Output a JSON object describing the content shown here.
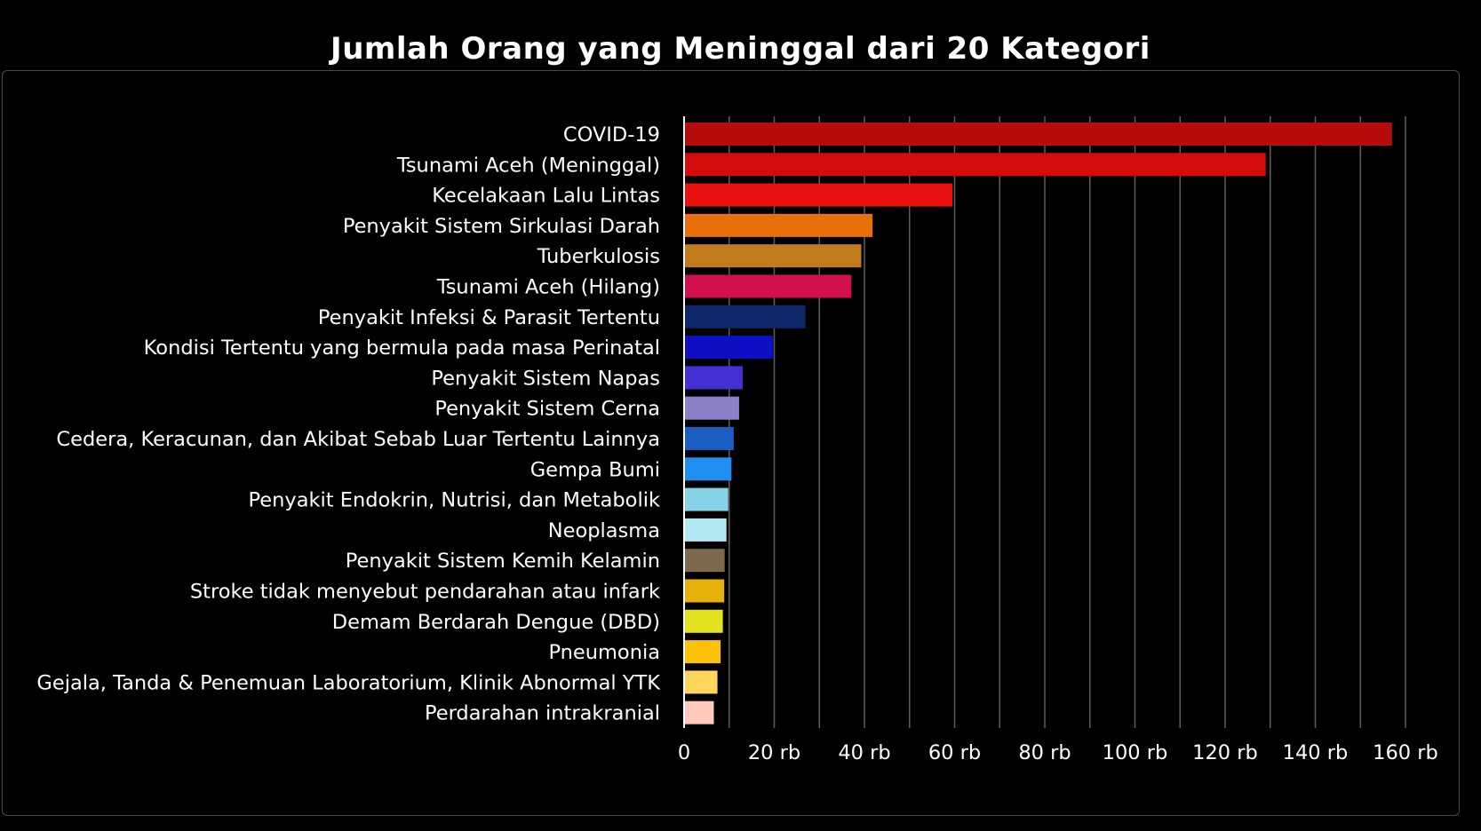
{
  "chart_data": {
    "type": "bar",
    "orientation": "horizontal",
    "title": "Jumlah Orang yang Meninggal dari 20 Kategori",
    "xlabel": "",
    "ylabel": "",
    "xlim": [
      0,
      160000
    ],
    "grid": true,
    "legend": "none",
    "tick_values": [
      0,
      20000,
      40000,
      60000,
      80000,
      100000,
      120000,
      140000,
      160000
    ],
    "tick_labels": [
      "0",
      "20 rb",
      "40 rb",
      "60 rb",
      "80 rb",
      "100 rb",
      "120 rb",
      "140 rb",
      "160 rb"
    ],
    "categories": [
      "COVID-19",
      "Tsunami Aceh (Meninggal)",
      "Kecelakaan Lalu Lintas",
      "Penyakit Sistem Sirkulasi Darah",
      "Tuberkulosis",
      "Tsunami Aceh (Hilang)",
      "Penyakit Infeksi & Parasit Tertentu",
      "Kondisi Tertentu yang bermula pada masa Perinatal",
      "Penyakit Sistem Napas",
      "Penyakit Sistem Cerna",
      "Cedera, Keracunan, dan Akibat Sebab Luar Tertentu Lainnya",
      "Gempa Bumi",
      "Penyakit Endokrin, Nutrisi, dan Metabolik",
      "Neoplasma",
      "Penyakit Sistem Kemih Kelamin",
      "Stroke tidak menyebut pendarahan atau infark",
      "Demam Berdarah Dengue (DBD)",
      "Pneumonia",
      "Gejala, Tanda & Penemuan Laboratorium, Klinik Abnormal YTK",
      "Perdarahan intrakranial"
    ],
    "values": [
      157000,
      129000,
      59500,
      41800,
      39300,
      37100,
      26900,
      19700,
      13000,
      12200,
      11000,
      10500,
      9800,
      9400,
      9000,
      8900,
      8600,
      8100,
      7400,
      6600
    ],
    "colors": [
      "#b80c0c",
      "#d40b0b",
      "#ea1010",
      "#e96f0a",
      "#c27b1c",
      "#d1114d",
      "#0e2769",
      "#0f0ec4",
      "#4430d2",
      "#8c80c9",
      "#1b5ec2",
      "#1e8ff0",
      "#86d2e6",
      "#b2e9f2",
      "#7d6a4c",
      "#e6b10a",
      "#e3e320",
      "#ffc00a",
      "#ffd65c",
      "#ffc9bb"
    ]
  }
}
